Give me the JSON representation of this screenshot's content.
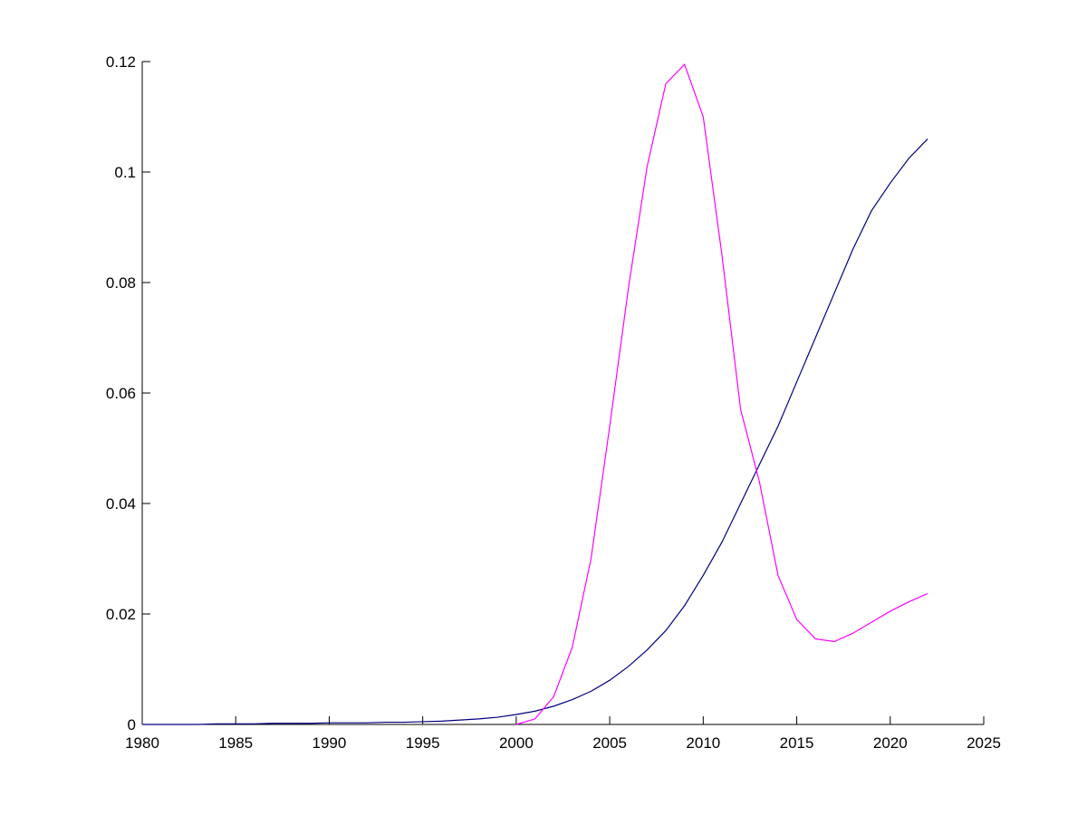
{
  "chart_data": {
    "type": "line",
    "x": [
      1980,
      1981,
      1982,
      1983,
      1984,
      1985,
      1986,
      1987,
      1988,
      1989,
      1990,
      1991,
      1992,
      1993,
      1994,
      1995,
      1996,
      1997,
      1998,
      1999,
      2000,
      2001,
      2002,
      2003,
      2004,
      2005,
      2006,
      2007,
      2008,
      2009,
      2010,
      2011,
      2012,
      2013,
      2014,
      2015,
      2016,
      2017,
      2018,
      2019,
      2020,
      2021,
      2022
    ],
    "series": [
      {
        "color": "#00007f",
        "values": [
          0,
          0,
          0,
          0,
          0.0001,
          0.0001,
          0.0001,
          0.0002,
          0.0002,
          0.0002,
          0.0003,
          0.0003,
          0.0003,
          0.0004,
          0.0004,
          0.0005,
          0.0006,
          0.0008,
          0.001,
          0.0013,
          0.0018,
          0.0024,
          0.0033,
          0.0045,
          0.006,
          0.008,
          0.0105,
          0.0135,
          0.017,
          0.0215,
          0.027,
          0.033,
          0.04,
          0.047,
          0.054,
          0.062,
          0.07,
          0.078,
          0.086,
          0.093,
          0.098,
          0.1025,
          0.106
        ]
      },
      {
        "color": "#ff00ff",
        "values": [
          null,
          null,
          null,
          null,
          null,
          null,
          null,
          null,
          null,
          null,
          null,
          null,
          null,
          null,
          null,
          null,
          null,
          null,
          null,
          null,
          0,
          0.001,
          0.005,
          0.014,
          0.03,
          0.054,
          0.079,
          0.101,
          0.116,
          0.1195,
          0.11,
          0.085,
          0.057,
          0.044,
          0.027,
          0.019,
          0.0155,
          0.015,
          0.0165,
          0.0185,
          0.0205,
          0.0222,
          0.0237
        ]
      }
    ],
    "xlim": [
      1980,
      2025
    ],
    "xticks": [
      1980,
      1985,
      1990,
      1995,
      2000,
      2005,
      2010,
      2015,
      2020,
      2025
    ],
    "ylim": [
      0,
      0.12
    ],
    "yticks": [
      0,
      0.02,
      0.04,
      0.06,
      0.08,
      0.1,
      0.12
    ]
  }
}
